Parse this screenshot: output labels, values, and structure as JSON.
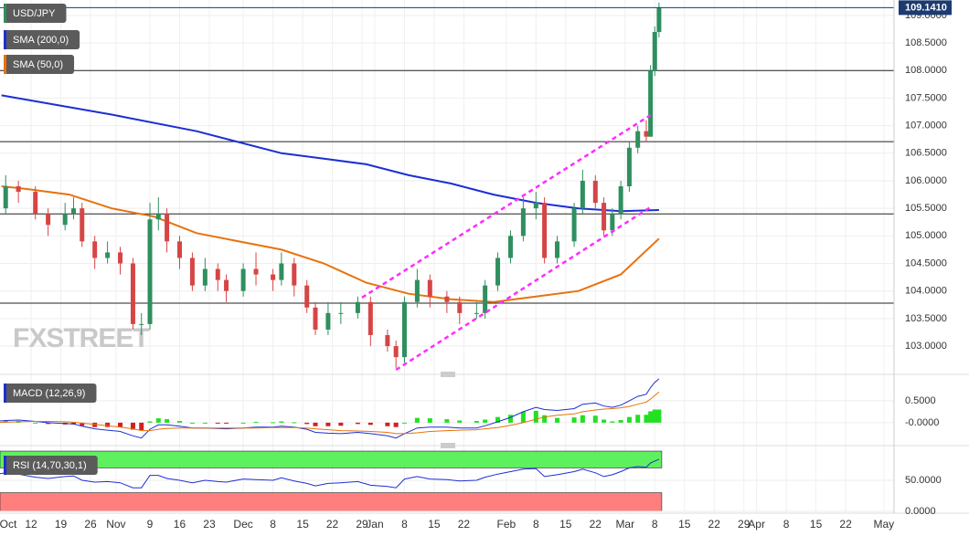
{
  "chart_data": [
    {
      "type": "candlestick",
      "title": "USD/JPY",
      "watermark": "FXSTREET",
      "up_color": "#2f8f5f",
      "down_color": "#d64545",
      "x": [
        1,
        5,
        8,
        12,
        15,
        19,
        21,
        23,
        26,
        29,
        32,
        35,
        37,
        39,
        41,
        43,
        46,
        49,
        52,
        55,
        57,
        61,
        64,
        68,
        70,
        73,
        76,
        78,
        81,
        84,
        88,
        91,
        95,
        97,
        99,
        102,
        105,
        109,
        112,
        116,
        118,
        121,
        124,
        127,
        130,
        132,
        135,
        139,
        141,
        144,
        146,
        148,
        150,
        152,
        154,
        156,
        157,
        158,
        159
      ],
      "open": [
        105.3,
        105.5,
        105.9,
        105.8,
        105.4,
        105.2,
        105.4,
        105.5,
        104.9,
        104.6,
        104.7,
        104.5,
        103.4,
        103.4,
        105.3,
        105.4,
        104.9,
        104.6,
        104.1,
        104.4,
        104.2,
        104.0,
        104.4,
        104.3,
        104.2,
        104.5,
        104.1,
        103.7,
        103.3,
        103.6,
        103.6,
        103.8,
        103.2,
        103.0,
        102.8,
        103.8,
        104.2,
        103.9,
        103.8,
        103.6,
        103.6,
        104.1,
        104.6,
        105.0,
        105.5,
        105.6,
        104.6,
        104.9,
        105.5,
        106.0,
        105.6,
        105.1,
        105.4,
        105.9,
        106.6,
        106.9,
        106.8,
        108.0,
        108.7
      ],
      "high": [
        105.7,
        106.1,
        106.0,
        105.9,
        105.5,
        105.6,
        105.7,
        105.6,
        105.0,
        104.9,
        104.8,
        104.6,
        103.6,
        105.6,
        105.7,
        105.5,
        105.0,
        104.7,
        104.6,
        104.5,
        104.3,
        104.5,
        104.7,
        104.4,
        104.7,
        104.6,
        104.2,
        103.8,
        103.8,
        103.8,
        103.9,
        103.9,
        103.3,
        103.1,
        103.9,
        104.4,
        104.3,
        104.0,
        103.9,
        103.8,
        104.2,
        104.7,
        105.1,
        105.7,
        105.8,
        105.7,
        105.0,
        105.6,
        106.2,
        106.1,
        105.7,
        105.5,
        106.0,
        106.7,
        107.0,
        107.1,
        108.1,
        108.8,
        109.23
      ],
      "low": [
        105.2,
        105.4,
        105.6,
        105.3,
        105.0,
        105.1,
        105.3,
        104.8,
        104.4,
        104.5,
        104.3,
        103.3,
        103.2,
        103.3,
        105.1,
        104.7,
        104.4,
        104.0,
        104.0,
        104.0,
        103.8,
        103.9,
        104.1,
        104.0,
        104.1,
        103.9,
        103.6,
        103.2,
        103.2,
        103.4,
        103.5,
        103.0,
        102.9,
        102.6,
        102.7,
        103.7,
        103.7,
        103.6,
        103.4,
        103.5,
        103.5,
        104.0,
        104.5,
        104.9,
        105.3,
        104.5,
        104.5,
        104.8,
        105.4,
        105.5,
        105.0,
        105.0,
        105.3,
        105.8,
        106.5,
        106.7,
        106.8,
        107.9,
        108.6
      ],
      "close": [
        105.5,
        105.9,
        105.8,
        105.4,
        105.2,
        105.4,
        105.5,
        104.9,
        104.6,
        104.7,
        104.5,
        103.4,
        103.4,
        105.3,
        105.4,
        104.9,
        104.6,
        104.1,
        104.4,
        104.2,
        104.0,
        104.4,
        104.3,
        104.2,
        104.5,
        104.1,
        103.7,
        103.3,
        103.6,
        103.6,
        103.8,
        103.2,
        103.0,
        102.8,
        103.8,
        104.2,
        103.9,
        103.8,
        103.6,
        103.6,
        104.1,
        104.6,
        105.0,
        105.5,
        105.6,
        104.6,
        104.9,
        105.5,
        106.0,
        105.6,
        105.1,
        105.4,
        105.9,
        106.6,
        106.9,
        106.8,
        108.0,
        108.7,
        109.14
      ],
      "series": [
        {
          "name": "SMA (200,0)",
          "color": "#1c2fd4",
          "x": [
            4,
            30,
            50,
            70,
            80,
            90,
            100,
            110,
            120,
            130,
            140,
            150,
            159
          ],
          "values": [
            107.55,
            107.2,
            106.9,
            106.5,
            106.4,
            106.3,
            106.1,
            105.95,
            105.75,
            105.6,
            105.5,
            105.45,
            105.47
          ]
        },
        {
          "name": "SMA (50,0)",
          "color": "#e8720c",
          "x": [
            4,
            10,
            20,
            30,
            40,
            50,
            60,
            70,
            80,
            90,
            100,
            110,
            120,
            130,
            140,
            150,
            159
          ],
          "values": [
            105.9,
            105.85,
            105.75,
            105.5,
            105.35,
            105.05,
            104.9,
            104.75,
            104.5,
            104.15,
            103.95,
            103.85,
            103.8,
            103.9,
            104.0,
            104.3,
            104.95
          ]
        }
      ],
      "trendlines": [
        {
          "color": "#ff2bff",
          "x": [
            89,
            157
          ],
          "values": [
            103.88,
            107.19
          ]
        },
        {
          "color": "#ff2bff",
          "x": [
            97,
            157
          ],
          "values": [
            102.57,
            105.52
          ]
        }
      ],
      "levels": [
        108.0,
        106.71,
        105.4,
        103.78
      ],
      "last_price": {
        "value": 109.141,
        "label": "109.1410"
      },
      "xlim": [
        3.66,
        214.4
      ],
      "ylim": [
        102.57,
        109.28
      ],
      "yticks": [
        {
          "value": 109.0,
          "label": "109.0000"
        },
        {
          "value": 108.5,
          "label": "108.5000"
        },
        {
          "value": 108.0,
          "label": "108.0000"
        },
        {
          "value": 107.5,
          "label": "107.5000"
        },
        {
          "value": 107.0,
          "label": "107.0000"
        },
        {
          "value": 106.5,
          "label": "106.5000"
        },
        {
          "value": 106.0,
          "label": "106.0000"
        },
        {
          "value": 105.5,
          "label": "105.5000"
        },
        {
          "value": 105.0,
          "label": "105.0000"
        },
        {
          "value": 104.5,
          "label": "104.5000"
        },
        {
          "value": 104.0,
          "label": "104.0000"
        },
        {
          "value": 103.5,
          "label": "103.5000"
        },
        {
          "value": 103.0,
          "label": "103.0000"
        }
      ],
      "xticks": [
        {
          "value": 0,
          "label": "Oct"
        },
        {
          "value": 11,
          "label": "12"
        },
        {
          "value": 18,
          "label": "19"
        },
        {
          "value": 25,
          "label": "26"
        },
        {
          "value": 31,
          "label": "Nov"
        },
        {
          "value": 39,
          "label": "9"
        },
        {
          "value": 46,
          "label": "16"
        },
        {
          "value": 53,
          "label": "23"
        },
        {
          "value": 61,
          "label": "Dec"
        },
        {
          "value": 68,
          "label": "8"
        },
        {
          "value": 75,
          "label": "15"
        },
        {
          "value": 82,
          "label": "22"
        },
        {
          "value": 89,
          "label": "29"
        },
        {
          "value": 92,
          "label": "Jan"
        },
        {
          "value": 99,
          "label": "8"
        },
        {
          "value": 106,
          "label": "15"
        },
        {
          "value": 113,
          "label": "22"
        },
        {
          "value": 123,
          "label": "Feb"
        },
        {
          "value": 130,
          "label": "8"
        },
        {
          "value": 137,
          "label": "15"
        },
        {
          "value": 144,
          "label": "22"
        },
        {
          "value": 151,
          "label": "Mar"
        },
        {
          "value": 158,
          "label": "8"
        },
        {
          "value": 165,
          "label": "15"
        },
        {
          "value": 172,
          "label": "22"
        },
        {
          "value": 179,
          "label": "29"
        },
        {
          "value": 182,
          "label": "Apr"
        },
        {
          "value": 189,
          "label": "8"
        },
        {
          "value": 196,
          "label": "15"
        },
        {
          "value": 203,
          "label": "22"
        },
        {
          "value": 212,
          "label": "May"
        }
      ],
      "grid": true
    },
    {
      "type": "macd",
      "title": "MACD (12,26,9)",
      "up_color": "#22e022",
      "down_color": "#d41f1f",
      "x": [
        1,
        5,
        8,
        12,
        15,
        19,
        21,
        23,
        26,
        29,
        32,
        35,
        37,
        39,
        41,
        43,
        46,
        49,
        52,
        55,
        57,
        61,
        64,
        68,
        70,
        73,
        76,
        78,
        81,
        84,
        88,
        91,
        95,
        97,
        99,
        102,
        105,
        109,
        112,
        116,
        118,
        121,
        124,
        127,
        130,
        132,
        135,
        139,
        141,
        144,
        146,
        148,
        150,
        152,
        154,
        156,
        157,
        158,
        159
      ],
      "series": [
        {
          "name": "MACD",
          "color": "#1c2fd4",
          "values": [
            0.02,
            0.05,
            0.06,
            0.03,
            0.0,
            -0.02,
            -0.03,
            -0.08,
            -0.14,
            -0.17,
            -0.2,
            -0.3,
            -0.35,
            -0.15,
            -0.05,
            -0.05,
            -0.08,
            -0.12,
            -0.12,
            -0.13,
            -0.14,
            -0.12,
            -0.1,
            -0.1,
            -0.08,
            -0.1,
            -0.15,
            -0.22,
            -0.24,
            -0.25,
            -0.22,
            -0.25,
            -0.3,
            -0.35,
            -0.25,
            -0.12,
            -0.1,
            -0.1,
            -0.12,
            -0.12,
            -0.07,
            0.02,
            0.12,
            0.25,
            0.35,
            0.3,
            0.28,
            0.32,
            0.42,
            0.45,
            0.38,
            0.35,
            0.4,
            0.5,
            0.6,
            0.65,
            0.8,
            0.92,
            1.0
          ]
        },
        {
          "name": "Signal",
          "color": "#e8720c",
          "values": [
            0.0,
            0.01,
            0.02,
            0.03,
            0.03,
            0.02,
            0.01,
            -0.01,
            -0.04,
            -0.07,
            -0.1,
            -0.14,
            -0.18,
            -0.18,
            -0.15,
            -0.13,
            -0.12,
            -0.12,
            -0.12,
            -0.12,
            -0.12,
            -0.12,
            -0.12,
            -0.11,
            -0.11,
            -0.11,
            -0.12,
            -0.14,
            -0.16,
            -0.18,
            -0.19,
            -0.2,
            -0.22,
            -0.25,
            -0.25,
            -0.23,
            -0.2,
            -0.18,
            -0.17,
            -0.16,
            -0.14,
            -0.11,
            -0.06,
            0.0,
            0.08,
            0.13,
            0.17,
            0.2,
            0.25,
            0.29,
            0.31,
            0.32,
            0.34,
            0.37,
            0.42,
            0.47,
            0.54,
            0.62,
            0.7
          ]
        }
      ],
      "histogram": [
        0.02,
        0.04,
        0.04,
        0.0,
        -0.03,
        -0.04,
        -0.04,
        -0.07,
        -0.1,
        -0.1,
        -0.1,
        -0.16,
        -0.17,
        0.03,
        0.1,
        0.08,
        0.04,
        0.0,
        0.0,
        -0.01,
        -0.02,
        0.0,
        0.02,
        0.01,
        0.03,
        0.01,
        -0.03,
        -0.08,
        -0.08,
        -0.07,
        -0.03,
        -0.05,
        -0.08,
        -0.1,
        0.0,
        0.11,
        0.1,
        0.08,
        0.05,
        0.04,
        0.07,
        0.13,
        0.18,
        0.25,
        0.27,
        0.17,
        0.11,
        0.12,
        0.17,
        0.16,
        0.07,
        0.03,
        0.06,
        0.13,
        0.18,
        0.18,
        0.26,
        0.3,
        0.3
      ],
      "ylim": [
        -0.46,
        1.06
      ],
      "yticks": [
        {
          "value": 0.5,
          "label": "0.5000"
        },
        {
          "value": 0,
          "label": "-0.0000"
        }
      ]
    },
    {
      "type": "line",
      "title": "RSI (14,70,30,1)",
      "x": [
        1,
        5,
        8,
        12,
        15,
        19,
        21,
        23,
        26,
        29,
        32,
        35,
        37,
        39,
        41,
        43,
        46,
        49,
        52,
        55,
        57,
        61,
        64,
        68,
        70,
        73,
        76,
        78,
        81,
        84,
        88,
        91,
        95,
        97,
        99,
        102,
        105,
        109,
        112,
        116,
        118,
        121,
        124,
        127,
        130,
        132,
        135,
        139,
        141,
        144,
        146,
        148,
        150,
        152,
        154,
        156,
        157,
        158,
        159
      ],
      "series": [
        {
          "name": "RSI",
          "color": "#1c2fd4",
          "values": [
            58,
            62,
            60,
            55,
            53,
            56,
            57,
            50,
            47,
            48,
            46,
            38,
            38,
            58,
            58,
            53,
            50,
            46,
            50,
            48,
            47,
            52,
            51,
            50,
            54,
            49,
            45,
            41,
            45,
            46,
            48,
            42,
            40,
            38,
            52,
            56,
            52,
            51,
            49,
            50,
            55,
            60,
            64,
            68,
            69,
            56,
            59,
            64,
            68,
            62,
            56,
            59,
            64,
            70,
            72,
            71,
            78,
            81,
            84
          ]
        }
      ],
      "bands": [
        {
          "from": 70,
          "to": 97,
          "color": "#5ef05e"
        },
        {
          "from": 0,
          "to": 30,
          "color": "#ff7f7f"
        }
      ],
      "ylim": [
        0,
        100
      ],
      "yticks": [
        {
          "value": 50,
          "label": "50.0000"
        },
        {
          "value": 0,
          "label": "0.0000"
        }
      ]
    }
  ]
}
